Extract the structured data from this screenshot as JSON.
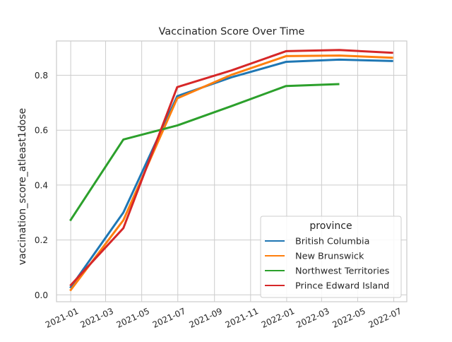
{
  "chart_data": {
    "type": "line",
    "title": "Vaccination Score Over Time",
    "xlabel": "",
    "ylabel": "vaccination_score_atleast1dose",
    "x_type": "date",
    "xlim": [
      "2020-12-08",
      "2022-07-23"
    ],
    "ylim": [
      -0.025,
      0.925
    ],
    "x_ticks": [
      "2021-01",
      "2021-03",
      "2021-05",
      "2021-07",
      "2021-09",
      "2021-11",
      "2022-01",
      "2022-03",
      "2022-05",
      "2022-07"
    ],
    "y_ticks": [
      0.0,
      0.2,
      0.4,
      0.6,
      0.8
    ],
    "y_tick_labels": [
      "0.0",
      "0.2",
      "0.4",
      "0.6",
      "0.8"
    ],
    "grid": true,
    "legend": {
      "title": "province",
      "position": "lower-right"
    },
    "series": [
      {
        "name": "British Columbia",
        "color": "#1f77b4",
        "x": [
          "2020-12-31",
          "2021-03-31",
          "2021-06-30",
          "2021-09-30",
          "2021-12-31",
          "2022-03-31",
          "2022-06-30"
        ],
        "y": [
          0.025,
          0.3,
          0.724,
          0.793,
          0.849,
          0.857,
          0.852
        ]
      },
      {
        "name": "New Brunswick",
        "color": "#ff7f0e",
        "x": [
          "2020-12-31",
          "2021-03-31",
          "2021-06-30",
          "2021-09-30",
          "2021-12-31",
          "2022-03-31",
          "2022-06-30"
        ],
        "y": [
          0.015,
          0.272,
          0.716,
          0.802,
          0.87,
          0.872,
          0.864
        ]
      },
      {
        "name": "Northwest Territories",
        "color": "#2ca02c",
        "x": [
          "2020-12-31",
          "2021-03-31",
          "2021-06-30",
          "2021-09-30",
          "2021-12-31",
          "2022-03-31"
        ],
        "y": [
          0.27,
          0.566,
          0.617,
          0.688,
          0.761,
          0.768
        ]
      },
      {
        "name": "Prince Edward Island",
        "color": "#d62728",
        "x": [
          "2020-12-31",
          "2021-03-31",
          "2021-06-30",
          "2021-09-30",
          "2021-12-31",
          "2022-03-31",
          "2022-06-30"
        ],
        "y": [
          0.033,
          0.243,
          0.757,
          0.818,
          0.888,
          0.892,
          0.882
        ]
      }
    ]
  }
}
